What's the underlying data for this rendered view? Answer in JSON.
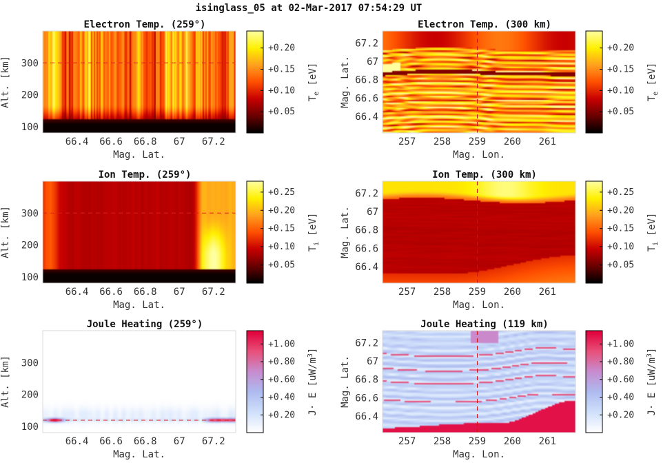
{
  "suptitle": "isinglass_05 at 02-Mar-2017 07:54:29 UT",
  "colors": {
    "heat_map": [
      "#000000",
      "#6b0000",
      "#c80000",
      "#ff5000",
      "#ffa01e",
      "#fff000",
      "#ffff9f"
    ],
    "diverging_map": [
      "#ffffff",
      "#cfe0fb",
      "#aebbf0",
      "#c88ccf",
      "#e8507a",
      "#e0003a"
    ]
  },
  "chart_data": [
    {
      "type": "heatmap",
      "id": "p1",
      "title": "Electron Temp. (259°)",
      "xlabel": "Mag. Lat.",
      "ylabel": "Alt. [km]",
      "xlim": [
        66.2,
        67.33
      ],
      "ylim": [
        80,
        400
      ],
      "xticks": [
        "66.4",
        "66.6",
        "66.8",
        "67",
        "67.2"
      ],
      "xtick_values": [
        66.4,
        66.6,
        66.8,
        67.0,
        67.2
      ],
      "yticks": [
        "100",
        "200",
        "300"
      ],
      "ytick_values": [
        100,
        200,
        300
      ],
      "colorbar": {
        "label": "T_e [eV]",
        "ticks": [
          "+0.05",
          "+0.10",
          "+0.15",
          "+0.20"
        ],
        "tick_values": [
          0.05,
          0.1,
          0.15,
          0.2
        ],
        "range": [
          0.0,
          0.24
        ],
        "cmap": "heat"
      },
      "reference_line": {
        "orientation": "horizontal",
        "value": 300
      },
      "profile_x": [
        66.2,
        66.3,
        66.35,
        66.45,
        66.55,
        66.62,
        66.7,
        66.78,
        66.86,
        66.92,
        67.0,
        67.06,
        67.14,
        67.2,
        67.33
      ],
      "profile_v": [
        0.14,
        0.18,
        0.12,
        0.17,
        0.13,
        0.15,
        0.12,
        0.14,
        0.12,
        0.18,
        0.16,
        0.19,
        0.13,
        0.14,
        0.13
      ]
    },
    {
      "type": "heatmap",
      "id": "p2",
      "title": "Electron Temp. (300 km)",
      "xlabel": "Mag. Lon.",
      "ylabel": "Mag. Lat.",
      "xlim": [
        256.3,
        261.8
      ],
      "ylim": [
        66.22,
        67.33
      ],
      "xticks": [
        "257",
        "258",
        "259",
        "260",
        "261"
      ],
      "xtick_values": [
        257,
        258,
        259,
        260,
        261
      ],
      "yticks": [
        "66.4",
        "66.6",
        "66.8",
        "67",
        "67.2"
      ],
      "ytick_values": [
        66.4,
        66.6,
        66.8,
        67.0,
        67.2
      ],
      "colorbar": {
        "label": "T_e [eV]",
        "ticks": [
          "+0.05",
          "+0.10",
          "+0.15",
          "+0.20"
        ],
        "tick_values": [
          0.05,
          0.1,
          0.15,
          0.2
        ],
        "range": [
          0.0,
          0.24
        ],
        "cmap": "heat"
      },
      "reference_line": {
        "orientation": "vertical",
        "value": 259
      }
    },
    {
      "type": "heatmap",
      "id": "p3",
      "title": "Ion Temp. (259°)",
      "xlabel": "Mag. Lat.",
      "ylabel": "Alt. [km]",
      "xlim": [
        66.2,
        67.33
      ],
      "ylim": [
        80,
        400
      ],
      "xticks": [
        "66.4",
        "66.6",
        "66.8",
        "67",
        "67.2"
      ],
      "xtick_values": [
        66.4,
        66.6,
        66.8,
        67.0,
        67.2
      ],
      "yticks": [
        "100",
        "200",
        "300"
      ],
      "ytick_values": [
        100,
        200,
        300
      ],
      "colorbar": {
        "label": "T_i [eV]",
        "ticks": [
          "+0.05",
          "+0.10",
          "+0.15",
          "+0.20",
          "+0.25"
        ],
        "tick_values": [
          0.05,
          0.1,
          0.15,
          0.2,
          0.25
        ],
        "range": [
          0.0,
          0.28
        ],
        "cmap": "heat"
      },
      "reference_line": {
        "orientation": "horizontal",
        "value": 300
      }
    },
    {
      "type": "heatmap",
      "id": "p4",
      "title": "Ion Temp. (300 km)",
      "xlabel": "Mag. Lon.",
      "ylabel": "Mag. Lat.",
      "xlim": [
        256.3,
        261.8
      ],
      "ylim": [
        66.22,
        67.33
      ],
      "xticks": [
        "257",
        "258",
        "259",
        "260",
        "261"
      ],
      "xtick_values": [
        257,
        258,
        259,
        260,
        261
      ],
      "yticks": [
        "66.4",
        "66.6",
        "66.8",
        "67",
        "67.2"
      ],
      "ytick_values": [
        66.4,
        66.6,
        66.8,
        67.0,
        67.2
      ],
      "colorbar": {
        "label": "T_i [eV]",
        "ticks": [
          "+0.05",
          "+0.10",
          "+0.15",
          "+0.20",
          "+0.25"
        ],
        "tick_values": [
          0.05,
          0.1,
          0.15,
          0.2,
          0.25
        ],
        "range": [
          0.0,
          0.28
        ],
        "cmap": "heat"
      },
      "reference_line": {
        "orientation": "vertical",
        "value": 259
      }
    },
    {
      "type": "heatmap",
      "id": "p5",
      "title": "Joule Heating (259°)",
      "xlabel": "Mag. Lat.",
      "ylabel": "Alt. [km]",
      "xlim": [
        66.2,
        67.33
      ],
      "ylim": [
        80,
        400
      ],
      "xticks": [
        "66.4",
        "66.6",
        "66.8",
        "67",
        "67.2"
      ],
      "xtick_values": [
        66.4,
        66.6,
        66.8,
        67.0,
        67.2
      ],
      "yticks": [
        "100",
        "200",
        "300"
      ],
      "ytick_values": [
        100,
        200,
        300
      ],
      "colorbar": {
        "label": "J· E [uW/m^3]",
        "ticks": [
          "+0.20",
          "+0.40",
          "+0.60",
          "+0.80",
          "+1.00"
        ],
        "tick_values": [
          0.2,
          0.4,
          0.6,
          0.8,
          1.0
        ],
        "range": [
          0.0,
          1.15
        ],
        "cmap": "diverging"
      },
      "reference_line": {
        "orientation": "horizontal",
        "value": 119
      }
    },
    {
      "type": "heatmap",
      "id": "p6",
      "title": "Joule Heating (119 km)",
      "xlabel": "Mag. Lon.",
      "ylabel": "Mag. Lat.",
      "xlim": [
        256.3,
        261.8
      ],
      "ylim": [
        66.22,
        67.33
      ],
      "xticks": [
        "257",
        "258",
        "259",
        "260",
        "261"
      ],
      "xtick_values": [
        257,
        258,
        259,
        260,
        261
      ],
      "yticks": [
        "66.4",
        "66.6",
        "66.8",
        "67",
        "67.2"
      ],
      "ytick_values": [
        66.4,
        66.6,
        66.8,
        67.0,
        67.2
      ],
      "colorbar": {
        "label": "J· E [uW/m^3]",
        "ticks": [
          "+0.20",
          "+0.40",
          "+0.60",
          "+0.80",
          "+1.00"
        ],
        "tick_values": [
          0.2,
          0.4,
          0.6,
          0.8,
          1.0
        ],
        "range": [
          0.0,
          1.15
        ],
        "cmap": "diverging"
      },
      "reference_line": {
        "orientation": "vertical",
        "value": 259
      }
    }
  ]
}
